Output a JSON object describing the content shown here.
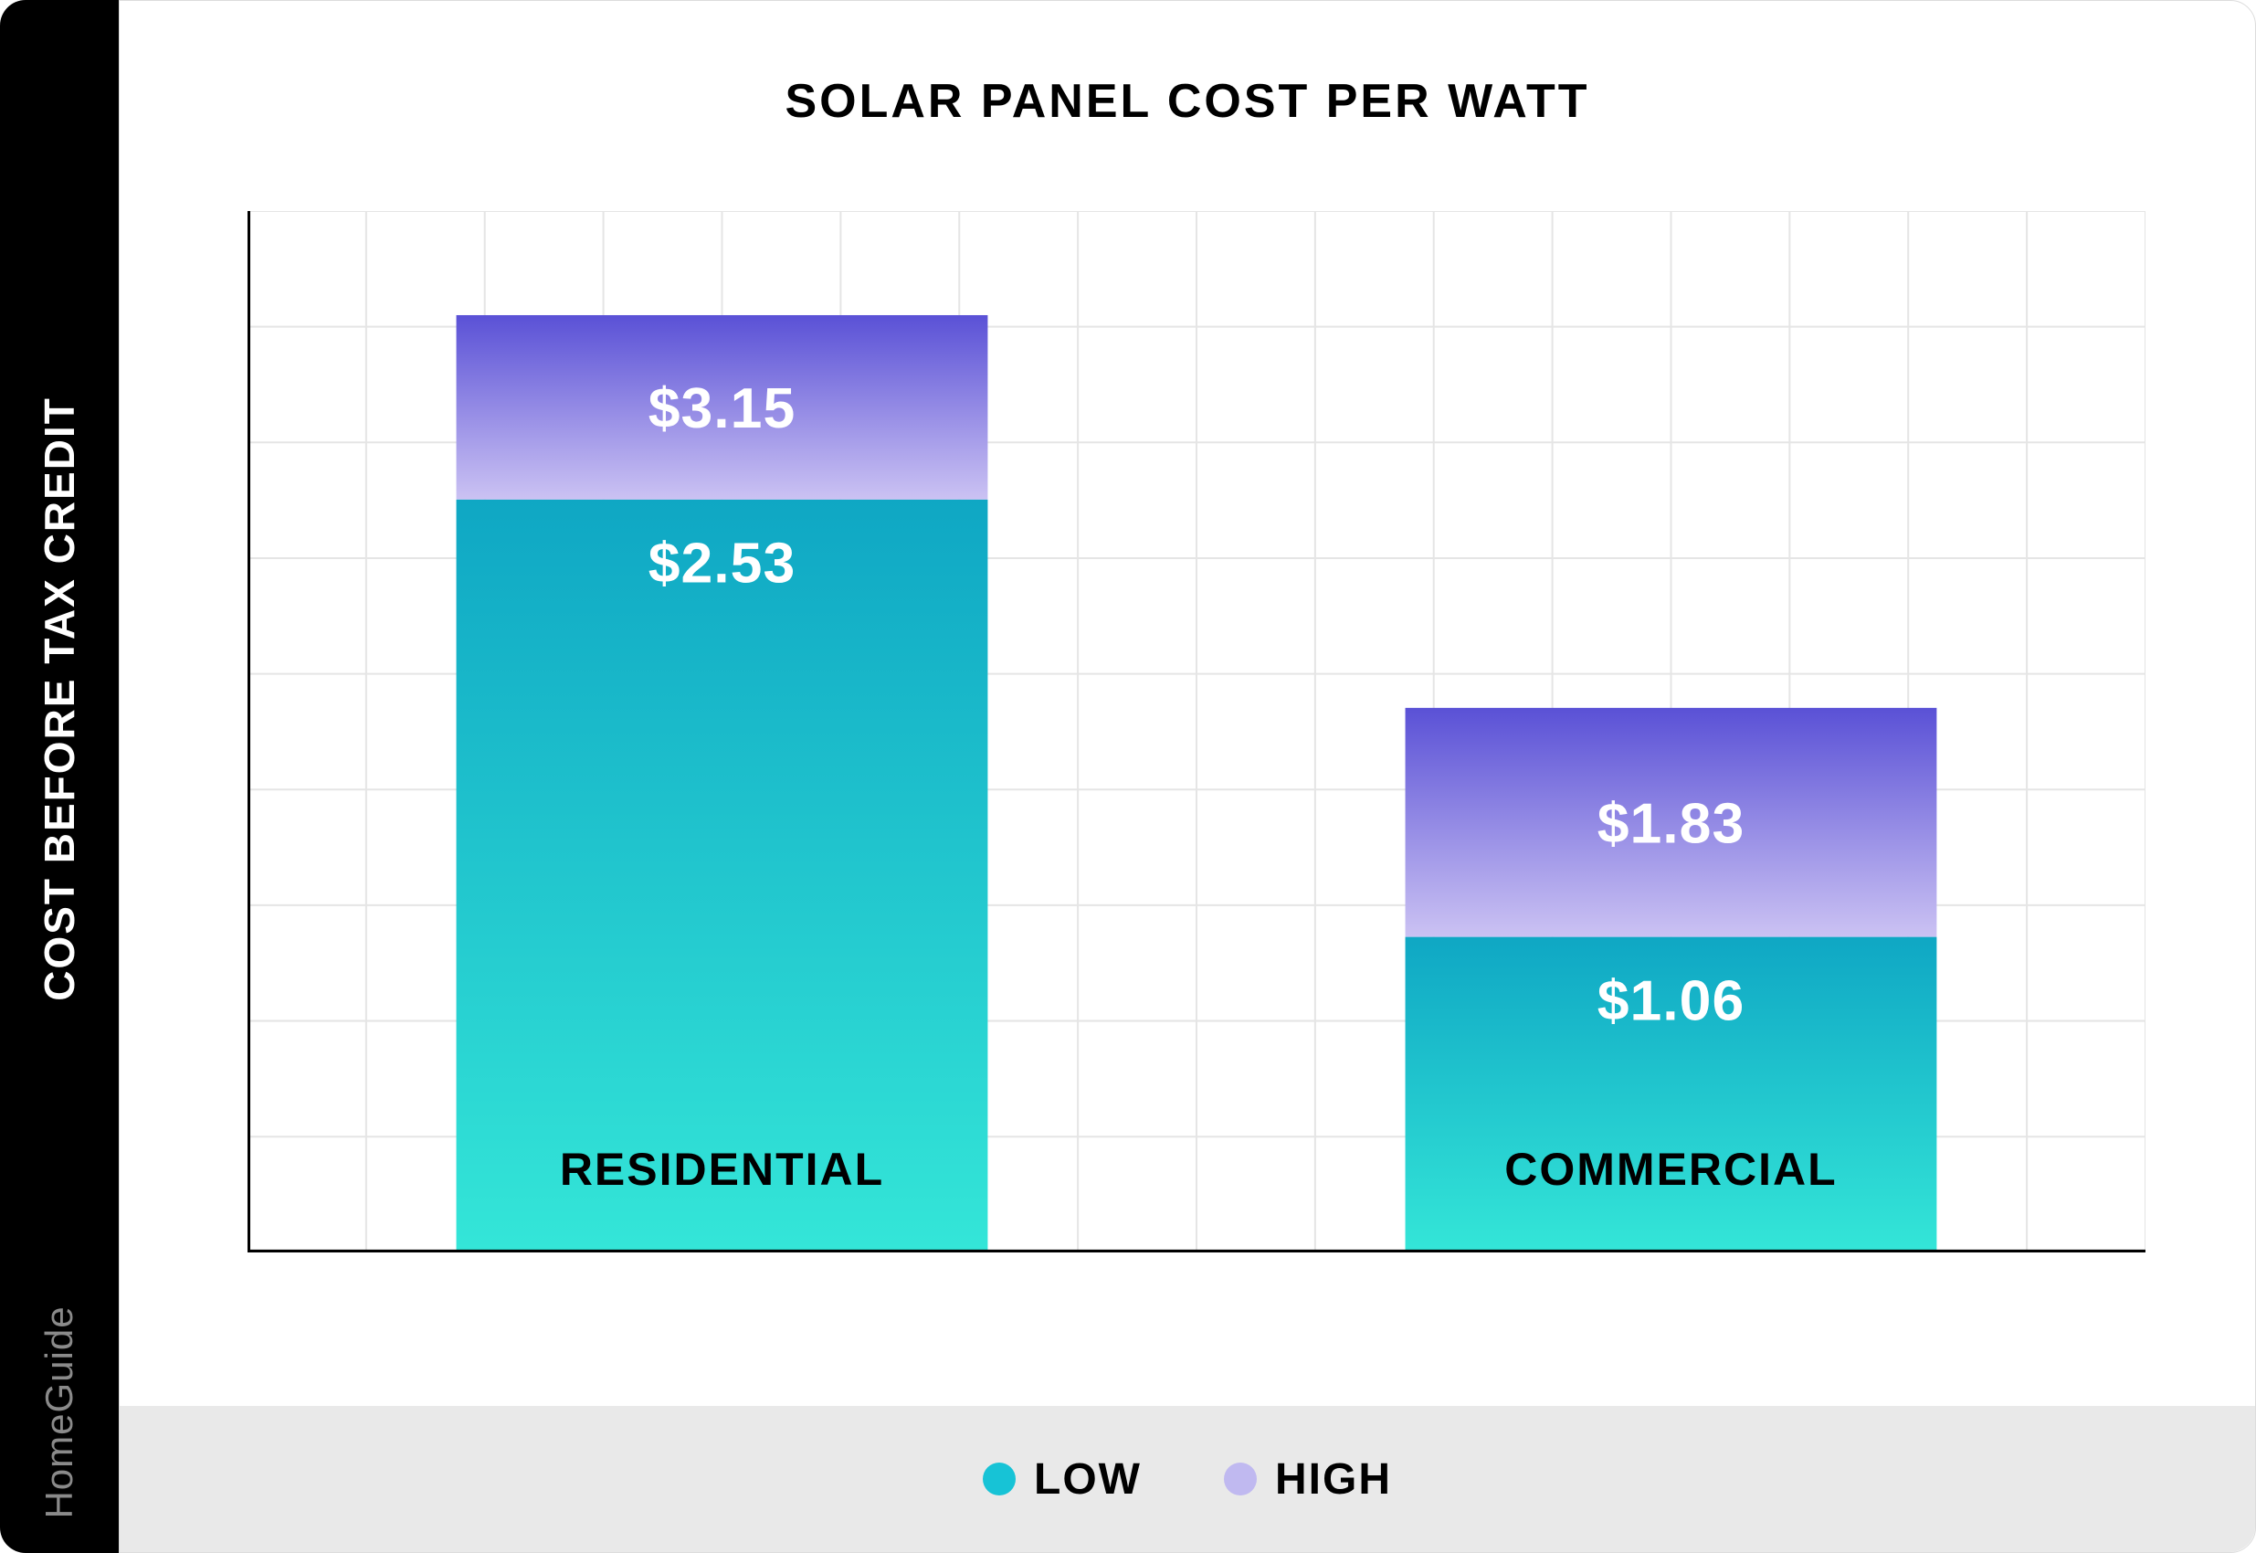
{
  "chart": {
    "type": "stacked-bar",
    "title": "SOLAR PANEL COST PER WATT",
    "title_fontsize": 52,
    "ylabel": "COST BEFORE TAX CREDIT",
    "ylabel_fontsize": 46,
    "brand": "HomeGuide",
    "background_color": "#ffffff",
    "side_rail_color": "#000000",
    "grid_color": "#e5e5e5",
    "axis_color": "#000000",
    "axis_width": 6,
    "frame_border_color": "#dcdcdc",
    "frame_border_radius": 28,
    "legend_bg": "#e9e9e9",
    "y_max": 3.5,
    "y_gridlines": 9,
    "x_gridlines": 16,
    "categories": [
      "RESIDENTIAL",
      "COMMERCIAL"
    ],
    "category_fontsize": 50,
    "series": [
      {
        "name": "LOW",
        "legend_color": "#17c3d6",
        "gradient_top": "#0fa7c4",
        "gradient_bottom": "#34e6d8",
        "values": [
          2.53,
          1.06
        ],
        "labels": [
          "$2.53",
          "$1.06"
        ]
      },
      {
        "name": "HIGH",
        "legend_color": "#c0b9f0",
        "gradient_top": "#5a51d6",
        "gradient_bottom": "#cbc2f3",
        "values": [
          3.15,
          1.83
        ],
        "labels": [
          "$3.15",
          "$1.83"
        ]
      }
    ],
    "bar_width_ratio": 0.56,
    "bar_label_fontsize": 62,
    "bar_label_color": "#ffffff"
  }
}
